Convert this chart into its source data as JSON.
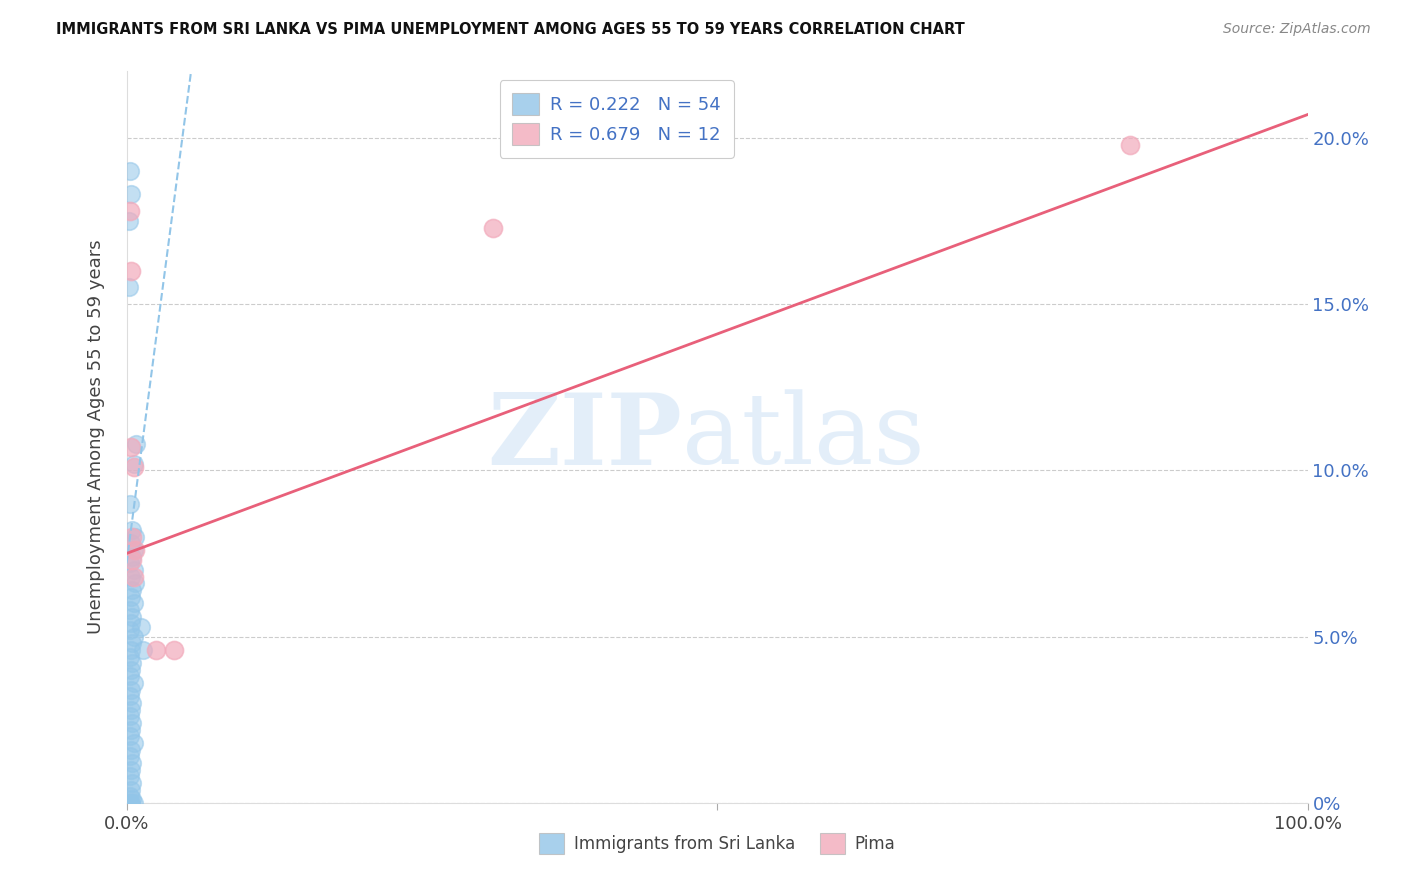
{
  "title": "IMMIGRANTS FROM SRI LANKA VS PIMA UNEMPLOYMENT AMONG AGES 55 TO 59 YEARS CORRELATION CHART",
  "source": "Source: ZipAtlas.com",
  "ylabel_label": "Unemployment Among Ages 55 to 59 years",
  "legend_labels": [
    "Immigrants from Sri Lanka",
    "Pima"
  ],
  "legend_R": [
    "R = 0.222",
    "R = 0.679"
  ],
  "legend_N": [
    "N = 54",
    "N = 12"
  ],
  "blue_color": "#92C5E8",
  "pink_color": "#F2AABB",
  "blue_line_color": "#92C5E8",
  "pink_line_color": "#E8607A",
  "watermark_zip": "ZIP",
  "watermark_atlas": "atlas",
  "blue_dots": [
    [
      0.003,
      0.19
    ],
    [
      0.004,
      0.183
    ],
    [
      0.002,
      0.175
    ],
    [
      0.002,
      0.155
    ],
    [
      0.008,
      0.108
    ],
    [
      0.006,
      0.102
    ],
    [
      0.003,
      0.09
    ],
    [
      0.005,
      0.082
    ],
    [
      0.007,
      0.08
    ],
    [
      0.004,
      0.078
    ],
    [
      0.006,
      0.076
    ],
    [
      0.005,
      0.074
    ],
    [
      0.003,
      0.072
    ],
    [
      0.006,
      0.07
    ],
    [
      0.004,
      0.068
    ],
    [
      0.007,
      0.066
    ],
    [
      0.005,
      0.064
    ],
    [
      0.004,
      0.062
    ],
    [
      0.006,
      0.06
    ],
    [
      0.003,
      0.058
    ],
    [
      0.005,
      0.056
    ],
    [
      0.004,
      0.054
    ],
    [
      0.003,
      0.052
    ],
    [
      0.006,
      0.05
    ],
    [
      0.005,
      0.048
    ],
    [
      0.004,
      0.046
    ],
    [
      0.003,
      0.044
    ],
    [
      0.005,
      0.042
    ],
    [
      0.004,
      0.04
    ],
    [
      0.003,
      0.038
    ],
    [
      0.006,
      0.036
    ],
    [
      0.004,
      0.034
    ],
    [
      0.003,
      0.032
    ],
    [
      0.005,
      0.03
    ],
    [
      0.004,
      0.028
    ],
    [
      0.003,
      0.026
    ],
    [
      0.005,
      0.024
    ],
    [
      0.004,
      0.022
    ],
    [
      0.003,
      0.02
    ],
    [
      0.006,
      0.018
    ],
    [
      0.004,
      0.016
    ],
    [
      0.003,
      0.014
    ],
    [
      0.005,
      0.012
    ],
    [
      0.004,
      0.01
    ],
    [
      0.003,
      0.008
    ],
    [
      0.005,
      0.006
    ],
    [
      0.004,
      0.004
    ],
    [
      0.003,
      0.002
    ],
    [
      0.005,
      0.001
    ],
    [
      0.004,
      0.0
    ],
    [
      0.006,
      0.0
    ],
    [
      0.003,
      0.0
    ],
    [
      0.012,
      0.053
    ],
    [
      0.014,
      0.046
    ]
  ],
  "pink_dots": [
    [
      0.003,
      0.178
    ],
    [
      0.004,
      0.16
    ],
    [
      0.004,
      0.107
    ],
    [
      0.006,
      0.101
    ],
    [
      0.005,
      0.08
    ],
    [
      0.007,
      0.076
    ],
    [
      0.005,
      0.073
    ],
    [
      0.006,
      0.068
    ],
    [
      0.025,
      0.046
    ],
    [
      0.04,
      0.046
    ],
    [
      0.31,
      0.173
    ],
    [
      0.85,
      0.198
    ]
  ],
  "xlim": [
    0.0,
    1.0
  ],
  "ylim": [
    0.0,
    0.22
  ],
  "yticks": [
    0.0,
    0.05,
    0.1,
    0.15,
    0.2
  ],
  "ytick_labels": [
    "0%",
    "5.0%",
    "10.0%",
    "15.0%",
    "20.0%"
  ],
  "blue_trend_x": [
    0.0,
    0.055
  ],
  "blue_trend_y": [
    0.072,
    0.221
  ],
  "pink_trend_x": [
    0.0,
    1.0
  ],
  "pink_trend_y": [
    0.075,
    0.207
  ]
}
